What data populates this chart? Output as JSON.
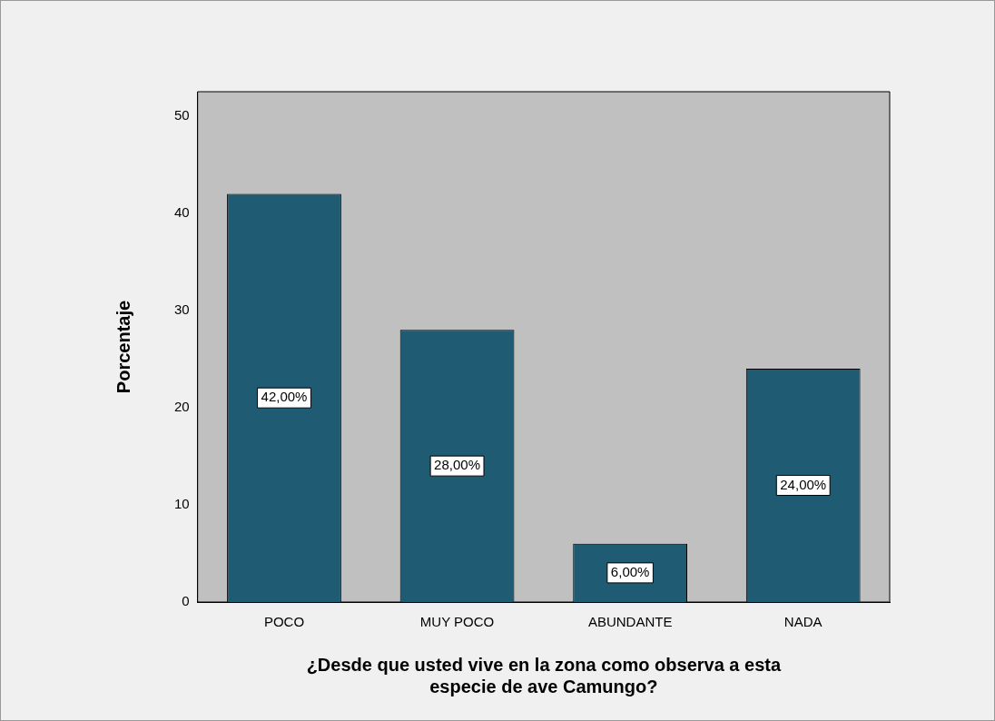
{
  "chart_data": {
    "type": "bar",
    "xlabel": "¿Desde que usted vive en la zona como observa a esta\nespecie de ave Camungo?",
    "ylabel": "Porcentaje",
    "categories": [
      "POCO",
      "MUY POCO",
      "ABUNDANTE",
      "NADA"
    ],
    "values": [
      42,
      28,
      6,
      24
    ],
    "color": "#1f5c73",
    "value_labels": [
      "42,00%",
      "28,00%",
      "6,00%",
      "24,00%"
    ],
    "ylim": [
      0,
      52.5
    ],
    "yticks": [
      0,
      10,
      20,
      30,
      40,
      50
    ],
    "grid": false,
    "legend": false
  }
}
